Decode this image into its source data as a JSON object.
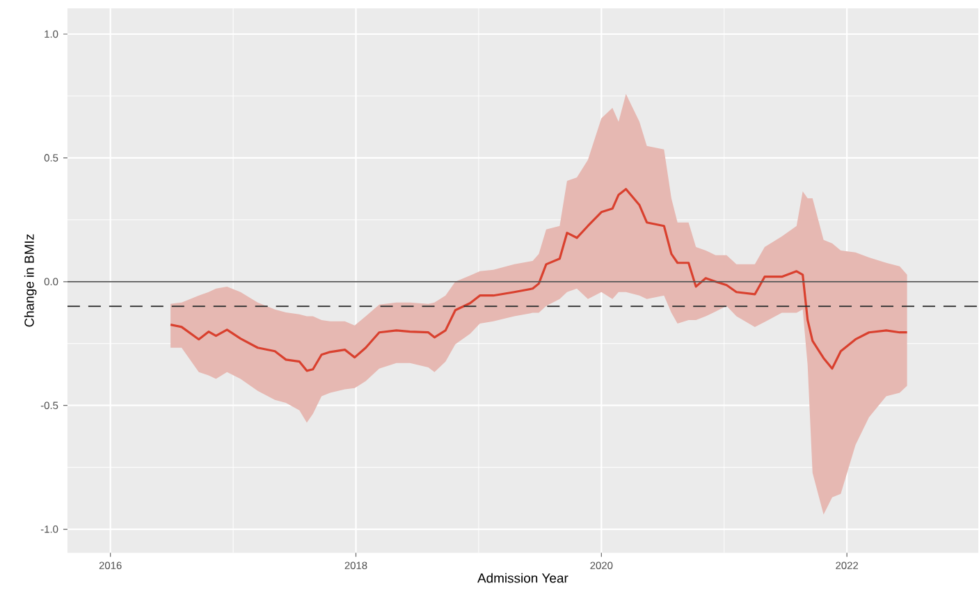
{
  "chart_data": {
    "type": "line",
    "xlabel": "Admission Year",
    "ylabel": "Change in BMIz",
    "x": [
      2016.49,
      2016.58,
      2016.72,
      2016.8,
      2016.86,
      2016.95,
      2017.06,
      2017.2,
      2017.34,
      2017.43,
      2017.54,
      2017.6,
      2017.65,
      2017.72,
      2017.79,
      2017.91,
      2017.99,
      2018.08,
      2018.19,
      2018.33,
      2018.44,
      2018.59,
      2018.64,
      2018.73,
      2018.81,
      2018.93,
      2019.01,
      2019.12,
      2019.29,
      2019.44,
      2019.49,
      2019.55,
      2019.66,
      2019.72,
      2019.8,
      2019.89,
      2020.0,
      2020.09,
      2020.14,
      2020.2,
      2020.31,
      2020.37,
      2020.51,
      2020.57,
      2020.62,
      2020.71,
      2020.77,
      2020.85,
      2020.93,
      2021.02,
      2021.1,
      2021.25,
      2021.33,
      2021.47,
      2021.59,
      2021.64,
      2021.68,
      2021.72,
      2021.81,
      2021.88,
      2021.95,
      2022.07,
      2022.18,
      2022.32,
      2022.43,
      2022.49
    ],
    "series": [
      {
        "color": "#d9402e",
        "values": [
          -0.174,
          -0.183,
          -0.233,
          -0.202,
          -0.219,
          -0.194,
          -0.23,
          -0.267,
          -0.281,
          -0.315,
          -0.323,
          -0.36,
          -0.354,
          -0.295,
          -0.284,
          -0.275,
          -0.306,
          -0.267,
          -0.205,
          -0.197,
          -0.202,
          -0.205,
          -0.225,
          -0.197,
          -0.115,
          -0.087,
          -0.056,
          -0.056,
          -0.042,
          -0.028,
          -0.008,
          0.07,
          0.093,
          0.197,
          0.177,
          0.225,
          0.281,
          0.295,
          0.351,
          0.374,
          0.309,
          0.239,
          0.225,
          0.112,
          0.076,
          0.076,
          -0.02,
          0.014,
          0.0,
          -0.014,
          -0.042,
          -0.051,
          0.02,
          0.02,
          0.042,
          0.028,
          -0.155,
          -0.239,
          -0.309,
          -0.351,
          -0.281,
          -0.233,
          -0.205,
          -0.197,
          -0.205,
          -0.205
        ],
        "upper": [
          -0.09,
          -0.084,
          -0.056,
          -0.042,
          -0.028,
          -0.02,
          -0.042,
          -0.084,
          -0.112,
          -0.124,
          -0.132,
          -0.14,
          -0.14,
          -0.155,
          -0.16,
          -0.16,
          -0.177,
          -0.14,
          -0.093,
          -0.084,
          -0.084,
          -0.09,
          -0.084,
          -0.056,
          0.0,
          0.025,
          0.042,
          0.048,
          0.07,
          0.084,
          0.112,
          0.211,
          0.225,
          0.407,
          0.421,
          0.492,
          0.66,
          0.702,
          0.646,
          0.758,
          0.646,
          0.548,
          0.534,
          0.337,
          0.239,
          0.239,
          0.14,
          0.126,
          0.107,
          0.107,
          0.07,
          0.07,
          0.14,
          0.183,
          0.225,
          0.365,
          0.337,
          0.337,
          0.169,
          0.155,
          0.126,
          0.118,
          0.098,
          0.076,
          0.062,
          0.028
        ],
        "lower": [
          -0.267,
          -0.267,
          -0.365,
          -0.379,
          -0.393,
          -0.365,
          -0.393,
          -0.441,
          -0.478,
          -0.49,
          -0.52,
          -0.57,
          -0.534,
          -0.463,
          -0.449,
          -0.435,
          -0.43,
          -0.402,
          -0.351,
          -0.329,
          -0.329,
          -0.346,
          -0.365,
          -0.323,
          -0.253,
          -0.211,
          -0.169,
          -0.16,
          -0.14,
          -0.126,
          -0.126,
          -0.098,
          -0.07,
          -0.042,
          -0.028,
          -0.07,
          -0.042,
          -0.07,
          -0.042,
          -0.042,
          -0.056,
          -0.07,
          -0.056,
          -0.126,
          -0.169,
          -0.155,
          -0.155,
          -0.14,
          -0.121,
          -0.098,
          -0.14,
          -0.183,
          -0.163,
          -0.126,
          -0.126,
          -0.112,
          -0.337,
          -0.772,
          -0.941,
          -0.871,
          -0.857,
          -0.66,
          -0.548,
          -0.463,
          -0.449,
          -0.421
        ]
      }
    ],
    "xlim": [
      2015.65,
      2023.07
    ],
    "ylim": [
      -1.095,
      1.104
    ],
    "xticks": [
      2016,
      2018,
      2020,
      2022
    ],
    "yticks": [
      {
        "value": -1,
        "label": "-1.0"
      },
      -0.5,
      {
        "value": 0,
        "label": "0.0"
      },
      0.5,
      {
        "value": 1,
        "label": "1.0"
      }
    ],
    "grid": true,
    "ref_lines": [
      {
        "axis": "y",
        "value": 0,
        "color": "#595959",
        "line_style": "solid"
      },
      {
        "axis": "y",
        "value": -0.1,
        "color": "#333333",
        "line_style": "dashed"
      }
    ]
  }
}
